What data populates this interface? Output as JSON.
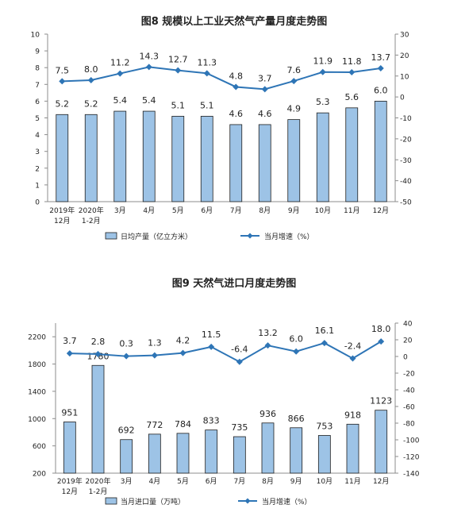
{
  "chart_data": [
    {
      "type": "bar",
      "title": "图8  规模以上工业天然气产量月度走势图",
      "categories": [
        [
          "2019年",
          "12月"
        ],
        [
          "2020年",
          "1-2月"
        ],
        [
          "3月"
        ],
        [
          "4月"
        ],
        [
          "5月"
        ],
        [
          "6月"
        ],
        [
          "7月"
        ],
        [
          "8月"
        ],
        [
          "9月"
        ],
        [
          "10月"
        ],
        [
          "11月"
        ],
        [
          "12月"
        ]
      ],
      "series": [
        {
          "name": "日均产量（亿立方米）",
          "type": "bar",
          "axis": "left",
          "values": [
            5.2,
            5.2,
            5.4,
            5.4,
            5.1,
            5.1,
            4.6,
            4.6,
            4.9,
            5.3,
            5.6,
            6.0
          ],
          "labels": [
            "5.2",
            "5.2",
            "5.4",
            "5.4",
            "5.1",
            "5.1",
            "4.6",
            "4.6",
            "4.9",
            "5.3",
            "5.6",
            "6.0"
          ]
        },
        {
          "name": "当月增速（%）",
          "type": "line",
          "axis": "right",
          "values": [
            7.5,
            8.0,
            11.2,
            14.3,
            12.7,
            11.3,
            4.8,
            3.7,
            7.6,
            11.9,
            11.8,
            13.7
          ],
          "labels": [
            "7.5",
            "8.0",
            "11.2",
            "14.3",
            "12.7",
            "11.3",
            "4.8",
            "3.7",
            "7.6",
            "11.9",
            "11.8",
            "13.7"
          ]
        }
      ],
      "ylim_left": [
        0,
        10
      ],
      "yticks_left": [
        "0",
        "1",
        "2",
        "3",
        "4",
        "5",
        "6",
        "7",
        "8",
        "9",
        "10"
      ],
      "ylim_right": [
        -50,
        30
      ],
      "yticks_right": [
        "-50",
        "-40",
        "-30",
        "-20",
        "-10",
        "0",
        "10",
        "20",
        "30"
      ],
      "grid": false,
      "legend": "bottom",
      "colors": {
        "bar_fill": "#9DC3E6",
        "bar_stroke": "#1F1F1F",
        "line": "#2E75B6"
      }
    },
    {
      "type": "bar",
      "title": "图9  天然气进口月度走势图",
      "categories": [
        [
          "2019年",
          "12月"
        ],
        [
          "2020年",
          "1-2月"
        ],
        [
          "3月"
        ],
        [
          "4月"
        ],
        [
          "5月"
        ],
        [
          "6月"
        ],
        [
          "7月"
        ],
        [
          "8月"
        ],
        [
          "9月"
        ],
        [
          "10月"
        ],
        [
          "11月"
        ],
        [
          "12月"
        ]
      ],
      "series": [
        {
          "name": "当月进口量（万吨）",
          "type": "bar",
          "axis": "left",
          "values": [
            951,
            1780,
            692,
            772,
            784,
            833,
            735,
            936,
            866,
            753,
            918,
            1123
          ],
          "labels": [
            "951",
            "1780",
            "692",
            "772",
            "784",
            "833",
            "735",
            "936",
            "866",
            "753",
            "918",
            "1123"
          ]
        },
        {
          "name": "当月增速（%）",
          "type": "line",
          "axis": "right",
          "values": [
            3.7,
            2.8,
            0.3,
            1.3,
            4.2,
            11.5,
            -6.4,
            13.2,
            6.0,
            16.1,
            -2.4,
            18.0
          ],
          "labels": [
            "3.7",
            "2.8",
            "0.3",
            "1.3",
            "4.2",
            "11.5",
            "-6.4",
            "13.2",
            "6.0",
            "16.1",
            "-2.4",
            "18.0"
          ]
        }
      ],
      "ylim_left": [
        200,
        2400
      ],
      "yticks_left": [
        "200",
        "600",
        "1000",
        "1400",
        "1800",
        "2200"
      ],
      "ylim_right": [
        -140,
        40
      ],
      "yticks_right": [
        "-140",
        "-120",
        "-100",
        "-80",
        "-60",
        "-40",
        "-20",
        "0",
        "20",
        "40"
      ],
      "grid": false,
      "legend": "bottom",
      "colors": {
        "bar_fill": "#9DC3E6",
        "bar_stroke": "#1F1F1F",
        "line": "#2E75B6"
      }
    }
  ]
}
